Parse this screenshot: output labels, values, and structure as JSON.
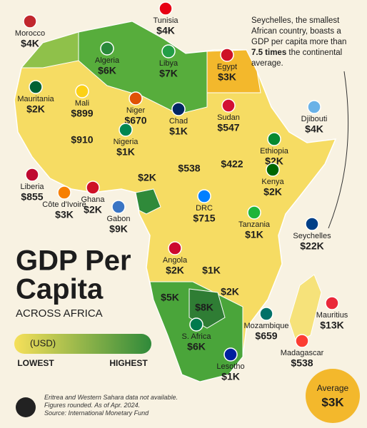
{
  "header": {
    "title_line1": "GDP Per",
    "title_line2": "Capita",
    "subtitle": "ACROSS AFRICA"
  },
  "legend": {
    "unit": "(USD)",
    "low": "LOWEST",
    "high": "HIGHEST"
  },
  "annotation": {
    "before": "Seychelles, the smallest African country, boasts a GDP per capita more than ",
    "bold": "7.5 times",
    "after": " the continental average."
  },
  "average": {
    "label": "Average",
    "value": "$3K"
  },
  "countries": [
    {
      "name": "Morocco",
      "value": "$4K"
    },
    {
      "name": "Tunisia",
      "value": "$4K"
    },
    {
      "name": "Algeria",
      "value": "$6K"
    },
    {
      "name": "Libya",
      "value": "$7K"
    },
    {
      "name": "Egypt",
      "value": "$3K"
    },
    {
      "name": "Mauritania",
      "value": "$2K"
    },
    {
      "name": "Mali",
      "value": "$899"
    },
    {
      "name": "Niger",
      "value": "$670"
    },
    {
      "name": "Chad",
      "value": "$1K"
    },
    {
      "name": "Sudan",
      "value": "$547"
    },
    {
      "name": "Djibouti",
      "value": "$4K"
    },
    {
      "name": "Ethiopia",
      "value": "$2K"
    },
    {
      "name": "Nigeria",
      "value": "$1K"
    },
    {
      "value": "$910"
    },
    {
      "value": "$2K"
    },
    {
      "value": "$538"
    },
    {
      "value": "$422"
    },
    {
      "name": "Kenya",
      "value": "$2K"
    },
    {
      "name": "Liberia",
      "value": "$855"
    },
    {
      "name": "Côte d'Ivoire",
      "value": "$3K"
    },
    {
      "name": "Ghana",
      "value": "$2K"
    },
    {
      "name": "Gabon",
      "value": "$9K"
    },
    {
      "name": "DRC",
      "value": "$715"
    },
    {
      "name": "Tanzania",
      "value": "$1K"
    },
    {
      "name": "Seychelles",
      "value": "$22K"
    },
    {
      "name": "Angola",
      "value": "$2K"
    },
    {
      "value": "$1K"
    },
    {
      "value": "$2K"
    },
    {
      "value": "$5K"
    },
    {
      "value": "$8K"
    },
    {
      "name": "S. Africa",
      "value": "$6K"
    },
    {
      "name": "Mozambique",
      "value": "$659"
    },
    {
      "name": "Mauritius",
      "value": "$13K"
    },
    {
      "name": "Madagascar",
      "value": "$538"
    },
    {
      "name": "Lesotho",
      "value": "$1K"
    }
  ],
  "footer": {
    "lines": [
      "Eritrea and Western Sahara data not available.",
      "Figures rounded. As of Apr. 2024.",
      "Source: International Monetary Fund"
    ]
  }
}
